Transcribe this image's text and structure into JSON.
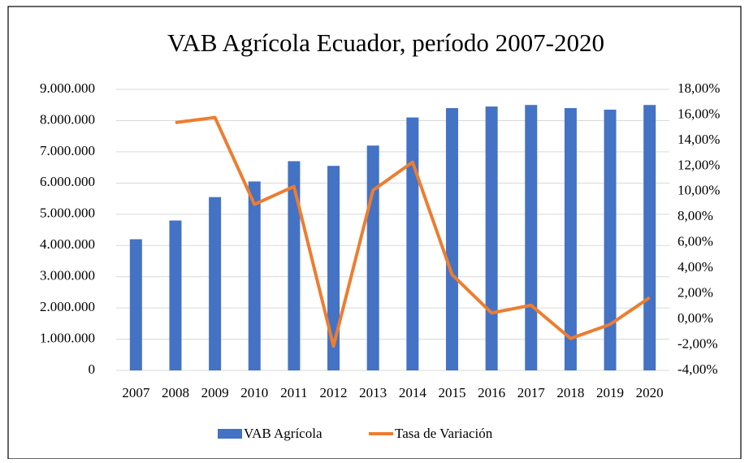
{
  "chart_data": {
    "type": "bar-line",
    "title": "VAB Agrícola Ecuador, período 2007-2020",
    "categories": [
      "2007",
      "2008",
      "2009",
      "2010",
      "2011",
      "2012",
      "2013",
      "2014",
      "2015",
      "2016",
      "2017",
      "2018",
      "2019",
      "2020"
    ],
    "series": [
      {
        "name": "VAB Agrícola",
        "type": "bar",
        "color": "#4472c4",
        "values": [
          4200000,
          4800000,
          5550000,
          6050000,
          6700000,
          6550000,
          7200000,
          8100000,
          8400000,
          8450000,
          8500000,
          8400000,
          8350000,
          8500000
        ]
      },
      {
        "name": "Tasa de Variación",
        "type": "line",
        "axis": "y2",
        "color": "#ed7d31",
        "values": [
          null,
          15.4,
          15.8,
          9.0,
          10.4,
          -2.1,
          10.1,
          12.3,
          3.5,
          0.5,
          1.1,
          -1.5,
          -0.4,
          1.7
        ]
      }
    ],
    "ylim": [
      0,
      9000000
    ],
    "yticks": [
      0,
      {
        "value": 1000000,
        "label": "1.000.000"
      },
      {
        "value": 2000000,
        "label": "2.000.000"
      },
      {
        "value": 3000000,
        "label": "3.000.000"
      },
      {
        "value": 4000000,
        "label": "4.000.000"
      },
      {
        "value": 5000000,
        "label": "5.000.000"
      },
      {
        "value": 6000000,
        "label": "6.000.000"
      },
      {
        "value": 7000000,
        "label": "7.000.000"
      },
      {
        "value": 8000000,
        "label": "8.000.000"
      },
      {
        "value": 9000000,
        "label": "9.000.000"
      }
    ],
    "y2lim": [
      -4,
      18
    ],
    "y2ticks": [
      {
        "value": -4,
        "label": "-4,00%"
      },
      {
        "value": -2,
        "label": "-2,00%"
      },
      {
        "value": 0,
        "label": "0,00%"
      },
      {
        "value": 2,
        "label": "2,00%"
      },
      {
        "value": 4,
        "label": "4,00%"
      },
      {
        "value": 6,
        "label": "6,00%"
      },
      {
        "value": 8,
        "label": "8,00%"
      },
      {
        "value": 10,
        "label": "10,00%"
      },
      {
        "value": 12,
        "label": "12,00%"
      },
      {
        "value": 14,
        "label": "14,00%"
      },
      {
        "value": 16,
        "label": "16,00%"
      },
      {
        "value": 18,
        "label": "18,00%"
      }
    ],
    "grid": true,
    "legend": "bottom"
  }
}
